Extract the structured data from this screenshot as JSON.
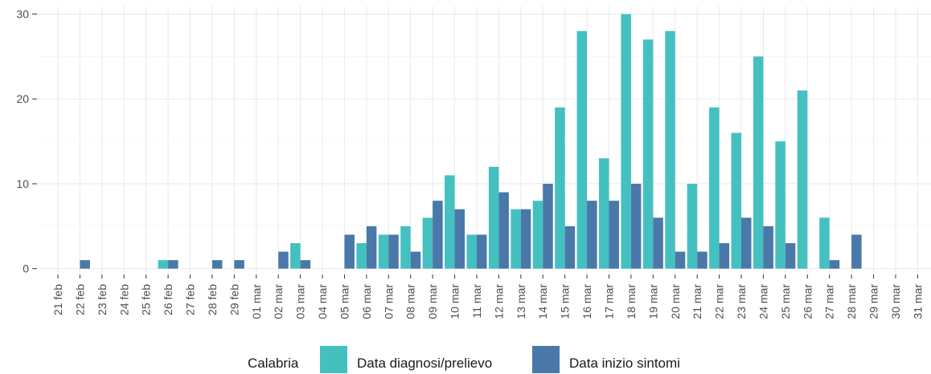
{
  "chart_data": {
    "type": "bar",
    "categories": [
      "21 feb",
      "22 feb",
      "23 feb",
      "24 feb",
      "25 feb",
      "26 feb",
      "27 feb",
      "28 feb",
      "29 feb",
      "01 mar",
      "02 mar",
      "03 mar",
      "04 mar",
      "05 mar",
      "06 mar",
      "07 mar",
      "08 mar",
      "09 mar",
      "10 mar",
      "11 mar",
      "12 mar",
      "13 mar",
      "14 mar",
      "15 mar",
      "16 mar",
      "17 mar",
      "18 mar",
      "19 mar",
      "20 mar",
      "21 mar",
      "22 mar",
      "23 mar",
      "24 mar",
      "25 mar",
      "26 mar",
      "27 mar",
      "28 mar",
      "29 mar",
      "30 mar",
      "31 mar"
    ],
    "series": [
      {
        "name": "Data diagnosi/prelievo",
        "color": "#45c0c0",
        "values": [
          0,
          0,
          0,
          0,
          0,
          1,
          0,
          0,
          0,
          0,
          0,
          3,
          0,
          0,
          3,
          4,
          5,
          6,
          11,
          4,
          12,
          7,
          8,
          19,
          28,
          13,
          30,
          27,
          28,
          10,
          19,
          16,
          25,
          15,
          21,
          6,
          0,
          0,
          0,
          0
        ]
      },
      {
        "name": "Data inizio sintomi",
        "color": "#4a78a8",
        "values": [
          0,
          1,
          0,
          0,
          0,
          1,
          0,
          1,
          1,
          0,
          2,
          1,
          0,
          4,
          5,
          4,
          2,
          8,
          7,
          4,
          9,
          7,
          10,
          5,
          8,
          8,
          10,
          6,
          2,
          2,
          3,
          6,
          5,
          3,
          0,
          1,
          4,
          0,
          0,
          0
        ]
      }
    ],
    "yticks": [
      0,
      10,
      20,
      30
    ],
    "ylim": [
      -0.5,
      30.9
    ],
    "legend": {
      "title": "Calabria",
      "position": "bottom"
    },
    "grid": true
  }
}
